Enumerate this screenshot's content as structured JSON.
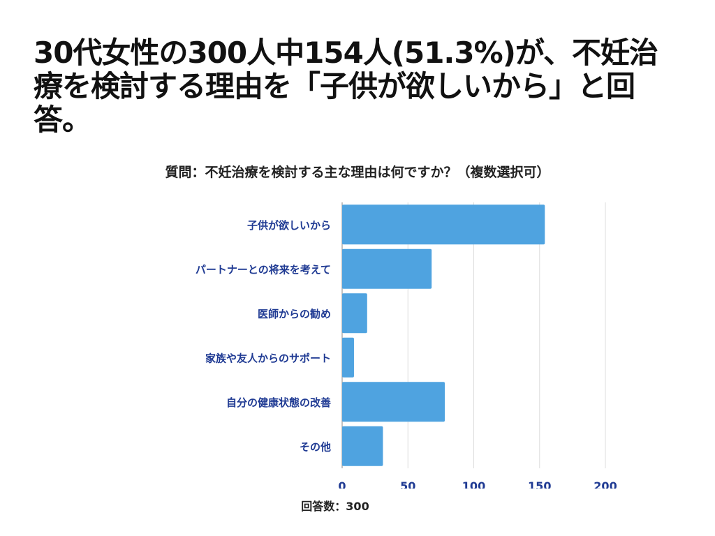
{
  "headline": "30代女性の300人中154人(51.3%)が、不妊治療を検討する理由を「子供が欲しいから」と回答。",
  "chart_data": {
    "type": "bar",
    "orientation": "horizontal",
    "title": "質問：不妊治療を検討する主な理由は何ですか？（複数選択可）",
    "categories": [
      "子供が欲しいから",
      "パートナーとの将来を考えて",
      "医師からの勧め",
      "家族や友人からのサポート",
      "自分の健康状態の改善",
      "その他"
    ],
    "values": [
      154,
      68,
      19,
      9,
      78,
      31
    ],
    "xlim": [
      0,
      200
    ],
    "xticks": [
      0,
      50,
      100,
      150,
      200
    ],
    "grid": true,
    "footnote": "回答数：300",
    "colors": {
      "bar": "#4FA3E0",
      "label": "#1F3A93",
      "grid": "#dddddd"
    }
  }
}
